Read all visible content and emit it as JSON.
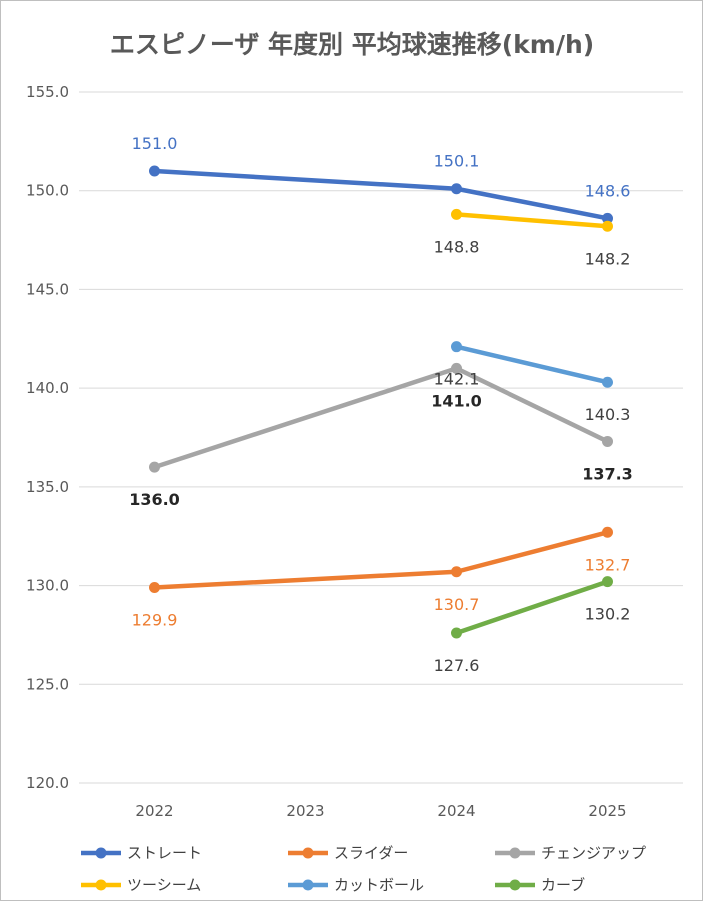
{
  "chart_data": {
    "type": "line",
    "title": "エスピノーザ 年度別 平均球速推移(km/h)",
    "xlabel": "",
    "ylabel": "",
    "categories": [
      "2022",
      "2023",
      "2024",
      "2025"
    ],
    "ylim": [
      120.0,
      155.0
    ],
    "yticks": [
      "120.0",
      "125.0",
      "130.0",
      "135.0",
      "140.0",
      "145.0",
      "150.0",
      "155.0"
    ],
    "grid": true,
    "legend_position": "bottom",
    "series": [
      {
        "name": "ストレート",
        "color": "#4472c4",
        "values": [
          151.0,
          null,
          150.1,
          148.6
        ],
        "labels": [
          "151.0",
          "",
          "150.1",
          "148.6"
        ],
        "label_color": "#4472c4",
        "label_pos": "above",
        "label_bold": false
      },
      {
        "name": "スライダー",
        "color": "#ed7d31",
        "values": [
          129.9,
          null,
          130.7,
          132.7
        ],
        "labels": [
          "129.9",
          "",
          "130.7",
          "132.7"
        ],
        "label_color": "#ed7d31",
        "label_pos": "below",
        "label_bold": false
      },
      {
        "name": "チェンジアップ",
        "color": "#a5a5a5",
        "values": [
          136.0,
          null,
          141.0,
          137.3
        ],
        "labels": [
          "136.0",
          "",
          "141.0",
          "137.3"
        ],
        "label_color": "#262626",
        "label_pos": "below",
        "label_bold": true
      },
      {
        "name": "ツーシーム",
        "color": "#ffc000",
        "values": [
          null,
          null,
          148.8,
          148.2
        ],
        "labels": [
          "",
          "",
          "148.8",
          "148.2"
        ],
        "label_color": "#404040",
        "label_pos": "below",
        "label_bold": false
      },
      {
        "name": "カットボール",
        "color": "#5b9bd5",
        "values": [
          null,
          null,
          142.1,
          140.3
        ],
        "labels": [
          "",
          "",
          "142.1",
          "140.3"
        ],
        "label_color": "#404040",
        "label_pos": "below",
        "label_bold": false
      },
      {
        "name": "カーブ",
        "color": "#70ad47",
        "values": [
          null,
          null,
          127.6,
          130.2
        ],
        "labels": [
          "",
          "",
          "127.6",
          "130.2"
        ],
        "label_color": "#404040",
        "label_pos": "below",
        "label_bold": false
      }
    ]
  }
}
